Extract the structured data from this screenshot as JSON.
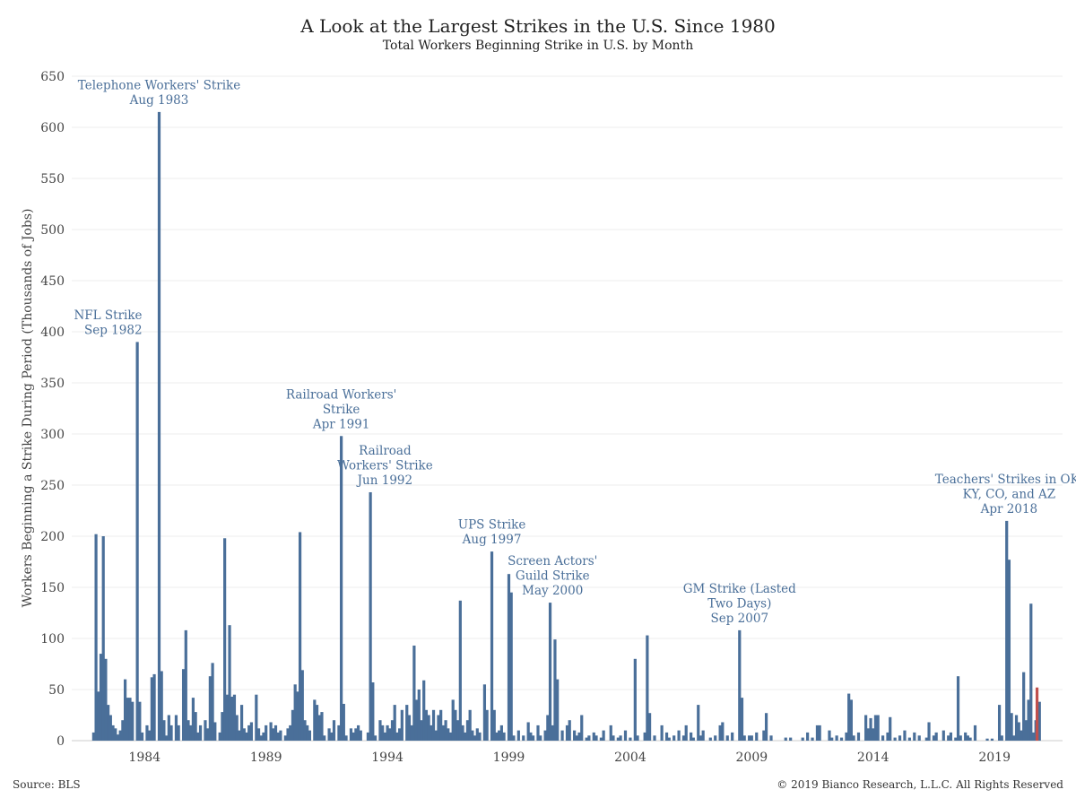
{
  "title": "A Look at the Largest Strikes in the U.S. Since 1980",
  "subtitle": "Total Workers Beginning Strike in U.S. by Month",
  "source": "Source: BLS",
  "copyright": "© 2019 Bianco Research, L.L.C. All Rights Reserved",
  "chart_data": {
    "type": "bar",
    "ylabel": "Workers Beginning a Strike During Period (Thousands of Jobs)",
    "ylim": [
      0,
      650
    ],
    "yticks": [
      0,
      50,
      100,
      150,
      200,
      250,
      300,
      350,
      400,
      450,
      500,
      550,
      600,
      650
    ],
    "xlim": [
      1981,
      2020.2
    ],
    "xticks": [
      1984,
      1989,
      1994,
      1999,
      2004,
      2009,
      2014,
      2019
    ],
    "grid": true,
    "colors": {
      "bar": "#4a6f99",
      "latest": "#c0504d",
      "annotation": "#4a6f99"
    },
    "bars": [
      [
        1981.9,
        8
      ],
      [
        1982.0,
        202
      ],
      [
        1982.1,
        48
      ],
      [
        1982.2,
        85
      ],
      [
        1982.3,
        200
      ],
      [
        1982.4,
        80
      ],
      [
        1982.5,
        35
      ],
      [
        1982.6,
        25
      ],
      [
        1982.7,
        15
      ],
      [
        1982.8,
        12
      ],
      [
        1982.9,
        6
      ],
      [
        1983.0,
        10
      ],
      [
        1983.1,
        20
      ],
      [
        1983.2,
        60
      ],
      [
        1983.3,
        42
      ],
      [
        1983.4,
        42
      ],
      [
        1983.5,
        38
      ],
      [
        1983.7,
        390
      ],
      [
        1983.8,
        38
      ],
      [
        1983.9,
        8
      ],
      [
        1984.1,
        15
      ],
      [
        1984.2,
        10
      ],
      [
        1984.3,
        62
      ],
      [
        1984.4,
        65
      ],
      [
        1984.6,
        615
      ],
      [
        1984.7,
        68
      ],
      [
        1984.8,
        20
      ],
      [
        1984.9,
        5
      ],
      [
        1985.0,
        25
      ],
      [
        1985.1,
        15
      ],
      [
        1985.3,
        25
      ],
      [
        1985.4,
        15
      ],
      [
        1985.6,
        70
      ],
      [
        1985.7,
        108
      ],
      [
        1985.8,
        20
      ],
      [
        1985.9,
        15
      ],
      [
        1986.0,
        42
      ],
      [
        1986.1,
        28
      ],
      [
        1986.2,
        8
      ],
      [
        1986.3,
        15
      ],
      [
        1986.5,
        20
      ],
      [
        1986.6,
        12
      ],
      [
        1986.7,
        63
      ],
      [
        1986.8,
        76
      ],
      [
        1986.9,
        18
      ],
      [
        1987.1,
        8
      ],
      [
        1987.2,
        28
      ],
      [
        1987.3,
        198
      ],
      [
        1987.4,
        45
      ],
      [
        1987.5,
        113
      ],
      [
        1987.6,
        43
      ],
      [
        1987.7,
        45
      ],
      [
        1987.8,
        25
      ],
      [
        1987.9,
        10
      ],
      [
        1988.0,
        35
      ],
      [
        1988.1,
        12
      ],
      [
        1988.2,
        8
      ],
      [
        1988.3,
        15
      ],
      [
        1988.4,
        18
      ],
      [
        1988.6,
        45
      ],
      [
        1988.7,
        12
      ],
      [
        1988.8,
        5
      ],
      [
        1988.9,
        8
      ],
      [
        1989.0,
        15
      ],
      [
        1989.2,
        18
      ],
      [
        1989.3,
        12
      ],
      [
        1989.4,
        15
      ],
      [
        1989.5,
        8
      ],
      [
        1989.6,
        10
      ],
      [
        1989.8,
        5
      ],
      [
        1989.9,
        12
      ],
      [
        1990.0,
        15
      ],
      [
        1990.1,
        30
      ],
      [
        1990.2,
        55
      ],
      [
        1990.3,
        48
      ],
      [
        1990.4,
        204
      ],
      [
        1990.5,
        69
      ],
      [
        1990.6,
        20
      ],
      [
        1990.7,
        15
      ],
      [
        1990.8,
        10
      ],
      [
        1991.0,
        40
      ],
      [
        1991.1,
        35
      ],
      [
        1991.2,
        25
      ],
      [
        1991.3,
        28
      ],
      [
        1991.4,
        5
      ],
      [
        1991.6,
        12
      ],
      [
        1991.7,
        8
      ],
      [
        1991.8,
        20
      ],
      [
        1992.0,
        15
      ],
      [
        1992.1,
        298
      ],
      [
        1992.2,
        36
      ],
      [
        1992.3,
        5
      ],
      [
        1992.5,
        12
      ],
      [
        1992.6,
        8
      ],
      [
        1992.7,
        12
      ],
      [
        1992.8,
        15
      ],
      [
        1992.9,
        10
      ],
      [
        1993.2,
        8
      ],
      [
        1993.3,
        243
      ],
      [
        1993.4,
        57
      ],
      [
        1993.5,
        5
      ],
      [
        1993.7,
        20
      ],
      [
        1993.8,
        15
      ],
      [
        1993.9,
        8
      ],
      [
        1994.0,
        15
      ],
      [
        1994.1,
        12
      ],
      [
        1994.2,
        20
      ],
      [
        1994.3,
        35
      ],
      [
        1994.4,
        8
      ],
      [
        1994.5,
        12
      ],
      [
        1994.6,
        30
      ],
      [
        1994.8,
        35
      ],
      [
        1994.9,
        25
      ],
      [
        1995.0,
        15
      ],
      [
        1995.1,
        93
      ],
      [
        1995.2,
        40
      ],
      [
        1995.3,
        50
      ],
      [
        1995.4,
        20
      ],
      [
        1995.5,
        59
      ],
      [
        1995.6,
        30
      ],
      [
        1995.7,
        25
      ],
      [
        1995.8,
        15
      ],
      [
        1995.9,
        30
      ],
      [
        1996.0,
        10
      ],
      [
        1996.1,
        25
      ],
      [
        1996.2,
        30
      ],
      [
        1996.3,
        15
      ],
      [
        1996.4,
        20
      ],
      [
        1996.5,
        12
      ],
      [
        1996.6,
        8
      ],
      [
        1996.7,
        40
      ],
      [
        1996.8,
        30
      ],
      [
        1996.9,
        20
      ],
      [
        1997.0,
        137
      ],
      [
        1997.1,
        15
      ],
      [
        1997.2,
        8
      ],
      [
        1997.3,
        20
      ],
      [
        1997.4,
        30
      ],
      [
        1997.5,
        10
      ],
      [
        1997.6,
        5
      ],
      [
        1997.7,
        12
      ],
      [
        1997.8,
        8
      ],
      [
        1998.0,
        55
      ],
      [
        1998.1,
        30
      ],
      [
        1998.3,
        185
      ],
      [
        1998.4,
        30
      ],
      [
        1998.5,
        8
      ],
      [
        1998.6,
        10
      ],
      [
        1998.7,
        15
      ],
      [
        1998.8,
        8
      ],
      [
        1999.0,
        163
      ],
      [
        1999.1,
        145
      ],
      [
        1999.2,
        5
      ],
      [
        1999.4,
        10
      ],
      [
        1999.6,
        5
      ],
      [
        1999.8,
        18
      ],
      [
        1999.9,
        8
      ],
      [
        2000.0,
        5
      ],
      [
        2000.2,
        15
      ],
      [
        2000.3,
        5
      ],
      [
        2000.5,
        10
      ],
      [
        2000.6,
        25
      ],
      [
        2000.7,
        135
      ],
      [
        2000.8,
        15
      ],
      [
        2000.9,
        99
      ],
      [
        2001.0,
        60
      ],
      [
        2001.2,
        10
      ],
      [
        2001.4,
        15
      ],
      [
        2001.5,
        20
      ],
      [
        2001.7,
        10
      ],
      [
        2001.8,
        5
      ],
      [
        2001.9,
        8
      ],
      [
        2002.0,
        25
      ],
      [
        2002.2,
        3
      ],
      [
        2002.3,
        5
      ],
      [
        2002.5,
        8
      ],
      [
        2002.6,
        5
      ],
      [
        2002.8,
        3
      ],
      [
        2002.9,
        10
      ],
      [
        2003.2,
        15
      ],
      [
        2003.3,
        5
      ],
      [
        2003.5,
        3
      ],
      [
        2003.6,
        5
      ],
      [
        2003.8,
        10
      ],
      [
        2004.0,
        3
      ],
      [
        2004.2,
        80
      ],
      [
        2004.3,
        5
      ],
      [
        2004.6,
        8
      ],
      [
        2004.7,
        103
      ],
      [
        2004.8,
        27
      ],
      [
        2005.0,
        5
      ],
      [
        2005.3,
        15
      ],
      [
        2005.5,
        8
      ],
      [
        2005.6,
        3
      ],
      [
        2005.8,
        5
      ],
      [
        2006.0,
        10
      ],
      [
        2006.2,
        5
      ],
      [
        2006.3,
        15
      ],
      [
        2006.5,
        8
      ],
      [
        2006.6,
        3
      ],
      [
        2006.8,
        35
      ],
      [
        2006.9,
        5
      ],
      [
        2007.0,
        10
      ],
      [
        2007.3,
        3
      ],
      [
        2007.5,
        5
      ],
      [
        2007.7,
        15
      ],
      [
        2007.8,
        18
      ],
      [
        2008.0,
        5
      ],
      [
        2008.2,
        8
      ],
      [
        2008.5,
        108
      ],
      [
        2008.6,
        42
      ],
      [
        2008.7,
        5
      ],
      [
        2008.9,
        5
      ],
      [
        2009.0,
        5
      ],
      [
        2009.2,
        8
      ],
      [
        2009.5,
        10
      ],
      [
        2009.6,
        27
      ],
      [
        2009.8,
        5
      ],
      [
        2010.4,
        3
      ],
      [
        2010.6,
        3
      ],
      [
        2011.1,
        3
      ],
      [
        2011.3,
        8
      ],
      [
        2011.5,
        3
      ],
      [
        2011.7,
        15
      ],
      [
        2011.8,
        15
      ],
      [
        2012.2,
        10
      ],
      [
        2012.3,
        3
      ],
      [
        2012.5,
        5
      ],
      [
        2012.7,
        3
      ],
      [
        2012.9,
        8
      ],
      [
        2013.0,
        46
      ],
      [
        2013.1,
        40
      ],
      [
        2013.2,
        5
      ],
      [
        2013.4,
        8
      ],
      [
        2013.7,
        25
      ],
      [
        2013.8,
        12
      ],
      [
        2013.9,
        22
      ],
      [
        2014.0,
        12
      ],
      [
        2014.1,
        25
      ],
      [
        2014.2,
        25
      ],
      [
        2014.4,
        5
      ],
      [
        2014.6,
        8
      ],
      [
        2014.7,
        23
      ],
      [
        2014.9,
        3
      ],
      [
        2015.1,
        5
      ],
      [
        2015.3,
        10
      ],
      [
        2015.5,
        3
      ],
      [
        2015.7,
        8
      ],
      [
        2015.9,
        5
      ],
      [
        2016.2,
        3
      ],
      [
        2016.3,
        18
      ],
      [
        2016.5,
        5
      ],
      [
        2016.6,
        8
      ],
      [
        2016.9,
        10
      ],
      [
        2017.1,
        5
      ],
      [
        2017.2,
        8
      ],
      [
        2017.4,
        3
      ],
      [
        2017.5,
        63
      ],
      [
        2017.6,
        5
      ],
      [
        2017.8,
        8
      ],
      [
        2017.9,
        5
      ],
      [
        2018.0,
        3
      ],
      [
        2018.2,
        15
      ],
      [
        2018.7,
        2
      ],
      [
        2018.9,
        2
      ],
      [
        2019.2,
        35
      ],
      [
        2019.3,
        5
      ],
      [
        2019.5,
        215
      ],
      [
        2019.6,
        177
      ],
      [
        2019.7,
        27
      ],
      [
        2019.8,
        5
      ],
      [
        2019.9,
        25
      ],
      [
        2020.0,
        18
      ],
      [
        2020.1,
        10
      ],
      [
        2020.2,
        67
      ],
      [
        2020.3,
        20
      ],
      [
        2020.4,
        40
      ],
      [
        2020.5,
        134
      ],
      [
        2020.6,
        8
      ],
      [
        2020.7,
        20
      ],
      [
        2020.85,
        38
      ]
    ],
    "latest_bar": [
      2020.75,
      52
    ],
    "annotations": [
      {
        "lines": [
          "Telephone Workers' Strike",
          "Aug 1983"
        ],
        "x": 1984.6,
        "align": "middle",
        "value": 615
      },
      {
        "lines": [
          "NFL Strike",
          "Sep 1982"
        ],
        "x": 1983.9,
        "align": "end",
        "value": 390
      },
      {
        "lines": [
          "Railroad Workers'",
          "Strike",
          "Apr 1991"
        ],
        "x": 1992.1,
        "align": "middle",
        "value": 298
      },
      {
        "lines": [
          "Railroad",
          "Workers' Strike",
          "Jun 1992"
        ],
        "x": 1993.9,
        "align": "middle",
        "value": 243
      },
      {
        "lines": [
          "UPS Strike",
          "Aug 1997"
        ],
        "x": 1998.3,
        "align": "middle",
        "value": 185
      },
      {
        "lines": [
          "Screen Actors'",
          "Guild Strike",
          "May 2000"
        ],
        "x": 2000.8,
        "align": "middle",
        "value": 135
      },
      {
        "lines": [
          "GM Strike (Lasted",
          "Two Days)",
          "Sep 2007"
        ],
        "x": 2008.5,
        "align": "middle",
        "value": 108
      },
      {
        "lines": [
          "Teachers' Strikes in OK,",
          "KY, CO, and AZ",
          "Apr 2018"
        ],
        "x": 2019.6,
        "align": "middle",
        "value": 215
      }
    ]
  }
}
